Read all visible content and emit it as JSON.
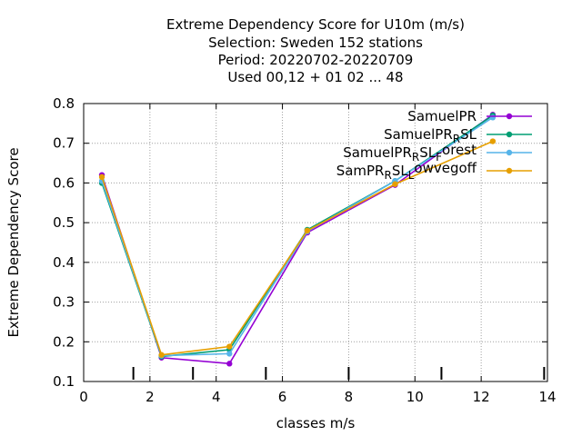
{
  "chart_data": {
    "type": "line",
    "title_lines": [
      "Extreme Dependency Score  for U10m (m/s)",
      "Selection: Sweden    152 stations",
      "Period: 20220702-20220709",
      "Used  00,12  + 01 02 ... 48"
    ],
    "xlabel": "classes m/s",
    "ylabel": "Extreme Dependency Score",
    "xlim": [
      0,
      14
    ],
    "ylim": [
      0.1,
      0.8
    ],
    "xticks": [
      0,
      2,
      4,
      6,
      8,
      10,
      12,
      14
    ],
    "yticks": [
      0.1,
      0.2,
      0.3,
      0.4,
      0.5,
      0.6,
      0.7,
      0.8
    ],
    "xtick_labels": [
      "0",
      "2",
      "4",
      "6",
      "8",
      "10",
      "12",
      "14"
    ],
    "ytick_labels": [
      "0.1",
      "0.2",
      "0.3",
      "0.4",
      "0.5",
      "0.6",
      "0.7",
      "0.8"
    ],
    "grid": true,
    "legend_position": "top-right",
    "class_boundaries": [
      1.5,
      3.3,
      5.5,
      8,
      10.8,
      13.9
    ],
    "series": [
      {
        "name": "SamuelPR",
        "name_parts": [
          [
            "SamuelPR",
            "n"
          ]
        ],
        "color": "#9400d3",
        "x": [
          0.55,
          2.35,
          4.4,
          6.75,
          9.4,
          12.35
        ],
        "y": [
          0.62,
          0.16,
          0.145,
          0.475,
          0.595,
          0.772
        ]
      },
      {
        "name": "SamuelPR_R SL",
        "name_parts": [
          [
            "SamuelPR",
            "n"
          ],
          [
            "R",
            "sub"
          ],
          [
            "SL",
            "n"
          ]
        ],
        "color": "#009e73",
        "x": [
          0.55,
          2.35,
          4.4,
          6.75,
          9.4,
          12.35
        ],
        "y": [
          0.6,
          0.163,
          0.18,
          0.482,
          0.605,
          0.77
        ]
      },
      {
        "name": "SamuelPR_R SL_Forest",
        "name_parts": [
          [
            "SamuelPR",
            "n"
          ],
          [
            "R",
            "sub"
          ],
          [
            "SL",
            "n"
          ],
          [
            "F",
            "sub"
          ],
          [
            "orest",
            "sup"
          ]
        ],
        "color": "#56b4e9",
        "x": [
          0.55,
          2.35,
          4.4,
          6.75,
          9.4,
          12.35
        ],
        "y": [
          0.605,
          0.165,
          0.17,
          0.478,
          0.605,
          0.765
        ]
      },
      {
        "name": "SamPR_R SL_Lowvegoff",
        "name_parts": [
          [
            "SamPR",
            "n"
          ],
          [
            "R",
            "sub"
          ],
          [
            "SL",
            "n"
          ],
          [
            "L",
            "sub"
          ],
          [
            "owvegoff",
            "sup"
          ]
        ],
        "color": "#e69f00",
        "x": [
          0.55,
          2.35,
          4.4,
          6.75,
          9.4,
          12.35
        ],
        "y": [
          0.615,
          0.167,
          0.188,
          0.48,
          0.597,
          0.705
        ]
      }
    ]
  }
}
